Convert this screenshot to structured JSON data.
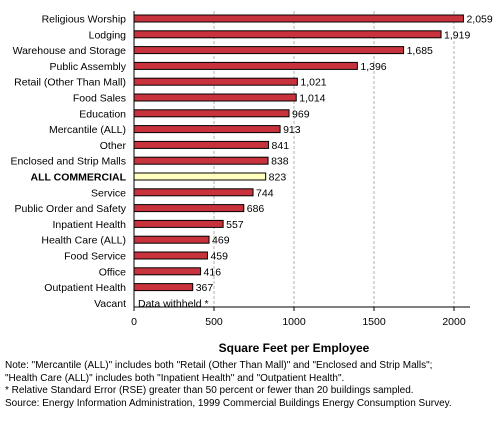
{
  "chart_data": {
    "type": "bar",
    "orientation": "horizontal",
    "categories": [
      "Religious Worship",
      "Lodging",
      "Warehouse and Storage",
      "Public Assembly",
      "Retail (Other Than Mall)",
      "Food Sales",
      "Education",
      "Mercantile (ALL)",
      "Other",
      "Enclosed and Strip Malls",
      "ALL COMMERCIAL",
      "Service",
      "Public Order and Safety",
      "Inpatient Health",
      "Health Care (ALL)",
      "Food Service",
      "Office",
      "Outpatient Health",
      "Vacant"
    ],
    "values": [
      2059,
      1919,
      1685,
      1396,
      1021,
      1014,
      969,
      913,
      841,
      838,
      823,
      744,
      686,
      557,
      469,
      459,
      416,
      367,
      null
    ],
    "value_labels": [
      "2,059",
      "1,919",
      "1,685",
      "1,396",
      "1,021",
      "1,014",
      "969",
      "913",
      "841",
      "838",
      "823",
      "744",
      "686",
      "557",
      "469",
      "459",
      "416",
      "367",
      "Data withheld *"
    ],
    "highlight_category": "ALL COMMERCIAL",
    "xlabel": "Square Feet per Employee",
    "ylabel": "",
    "xlim": [
      0,
      2100
    ],
    "xticks": [
      0,
      500,
      1000,
      1500,
      2000
    ],
    "xtick_labels": [
      "0",
      "500",
      "1000",
      "1500",
      "2000"
    ],
    "grid": "vertical dashed",
    "legend": "none",
    "colors": {
      "bar": "#c8323c",
      "highlight": "#ffffc0",
      "bar_stroke": "#000000",
      "grid": "#b0b0b0"
    }
  },
  "notes": [
    "Note: \"Mercantile (ALL)\" includes both \"Retail (Other Than Mall)\" and \"Enclosed and Strip Malls\";",
    "\"Health Care (ALL)\" includes both \"Inpatient Health\" and \"Outpatient Health\".",
    "* Relative Standard Error (RSE) greater than 50 percent or fewer than 20 buildings sampled.",
    "Source: Energy Information Administration, 1999 Commercial Buildings Energy Consumption Survey."
  ]
}
